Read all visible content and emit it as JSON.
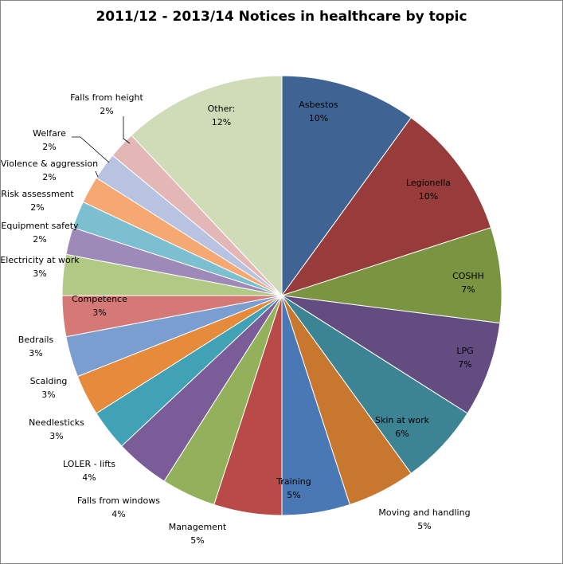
{
  "chart_data": {
    "type": "pie",
    "title": "2011/12 - 2013/14 Notices in healthcare by topic",
    "start_angle_deg": 0,
    "direction": "clockwise",
    "slices": [
      {
        "label": "Asbestos",
        "value": 10,
        "value_label": "10%",
        "color": "#3f6493"
      },
      {
        "label": "Legionella",
        "value": 10,
        "value_label": "10%",
        "color": "#973c3a"
      },
      {
        "label": "COSHH",
        "value": 7,
        "value_label": "7%",
        "color": "#7a9441"
      },
      {
        "label": "LPG",
        "value": 7,
        "value_label": "7%",
        "color": "#634c80"
      },
      {
        "label": "Skin at work",
        "value": 6,
        "value_label": "6%",
        "color": "#3c8394"
      },
      {
        "label": "Moving and handling",
        "value": 5,
        "value_label": "5%",
        "color": "#c8772f"
      },
      {
        "label": "Training",
        "value": 5,
        "value_label": "5%",
        "color": "#4a78b4"
      },
      {
        "label": "Management",
        "value": 5,
        "value_label": "5%",
        "color": "#b84a47"
      },
      {
        "label": "Falls from windows",
        "value": 4,
        "value_label": "4%",
        "color": "#93b05a"
      },
      {
        "label": "LOLER - lifts",
        "value": 4,
        "value_label": "4%",
        "color": "#7a5c99"
      },
      {
        "label": "Needlesticks",
        "value": 3,
        "value_label": "3%",
        "color": "#41a2b6"
      },
      {
        "label": "Scalding",
        "value": 3,
        "value_label": "3%",
        "color": "#e68a3c"
      },
      {
        "label": "Bedrails",
        "value": 3,
        "value_label": "3%",
        "color": "#7b9ed1"
      },
      {
        "label": "Competence",
        "value": 3,
        "value_label": "3%",
        "color": "#d57977"
      },
      {
        "label": "Electricity at work",
        "value": 3,
        "value_label": "3%",
        "color": "#b2c985"
      },
      {
        "label": "Equipment safety",
        "value": 2,
        "value_label": "2%",
        "color": "#9d8ab8"
      },
      {
        "label": "Risk assessment",
        "value": 2,
        "value_label": "2%",
        "color": "#7bbfd0"
      },
      {
        "label": "Violence & aggression",
        "value": 2,
        "value_label": "2%",
        "color": "#f6a872"
      },
      {
        "label": "Welfare",
        "value": 2,
        "value_label": "2%",
        "color": "#b7c3e0"
      },
      {
        "label": "Falls from height",
        "value": 2,
        "value_label": "2%",
        "color": "#e3b7b6"
      },
      {
        "label": "Other:",
        "value": 12,
        "value_label": "12%",
        "color": "#d0dcb8"
      }
    ]
  }
}
